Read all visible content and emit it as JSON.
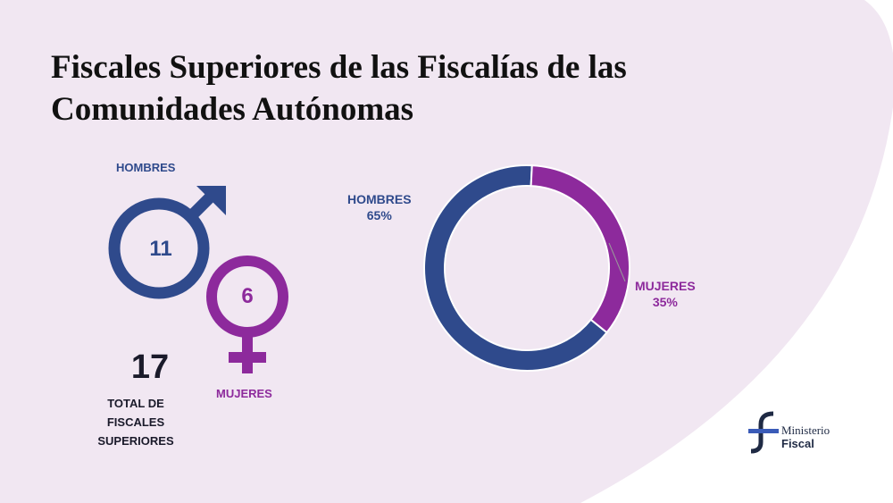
{
  "title_line1": "Fiscales Superiores de las Fiscalías de las",
  "title_line2": "Comunidades Autónomas",
  "colors": {
    "hombres": "#2f4a8c",
    "mujeres": "#8d2a9c",
    "background_shape": "#f1e7f2"
  },
  "gender_icons": {
    "hombres_label": "HOMBRES",
    "hombres_count": "11",
    "mujeres_label": "MUJERES",
    "mujeres_count": "6",
    "icons": [
      "male-symbol-icon",
      "female-symbol-icon"
    ]
  },
  "total": {
    "value": "17",
    "label_line1": "TOTAL DE",
    "label_line2": "FISCALES",
    "label_line3": "SUPERIORES"
  },
  "chart_data": {
    "type": "pie",
    "donut": true,
    "title": "",
    "categories": [
      "HOMBRES",
      "MUJERES"
    ],
    "values": [
      65,
      35
    ],
    "labels": [
      "65%",
      "35%"
    ],
    "legend": "none"
  },
  "logo": {
    "line1": "Ministerio",
    "line2": "Fiscal",
    "icon": "ministerio-fiscal-logo-icon"
  }
}
